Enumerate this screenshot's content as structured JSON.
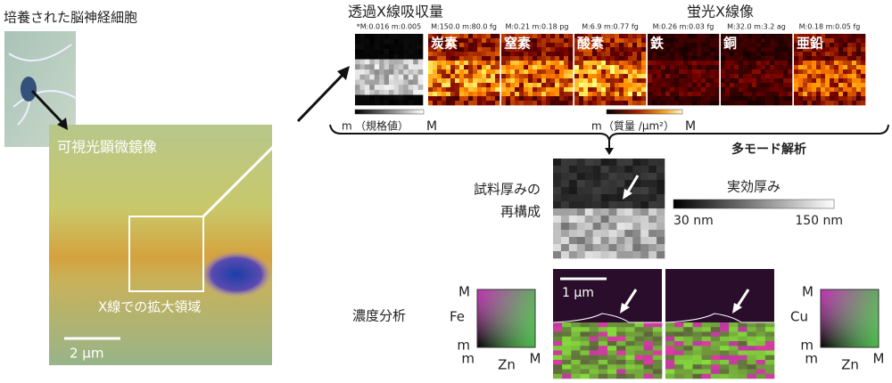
{
  "left": {
    "culture_label": "培養された脳神経細胞",
    "micro_label": "可視光顕微鏡像",
    "region_label": "X線での拡大領域",
    "scale_bar": "2 µm"
  },
  "transmission": {
    "title": "透過X線吸収量",
    "range": "*M:0.016 m:0.005",
    "legend_min": "m",
    "legend_label": "（規格値）",
    "legend_max": "M"
  },
  "fluorescence": {
    "title": "蛍光X線像",
    "panels": [
      {
        "element": "炭素",
        "range": "M:150.0 m:80.0 fg"
      },
      {
        "element": "窒素",
        "range": "M:0.21 m:0.18 pg"
      },
      {
        "element": "酸素",
        "range": "M:6.9 m:0.77 fg"
      },
      {
        "element": "鉄",
        "range": "M:0.26 m:0.03 fg"
      },
      {
        "element": "銅",
        "range": "M:32.0 m:3.2 ag"
      },
      {
        "element": "亜鉛",
        "range": "M:0.18 m:0.05 fg"
      }
    ],
    "legend_min": "m",
    "legend_label": "（質量 /µm²）",
    "legend_max": "M"
  },
  "analysis": "多モード解析",
  "thickness": {
    "label_lines": [
      "試料厚みの",
      "再構成"
    ],
    "legend_title": "実効厚み",
    "min": "30 nm",
    "max": "150 nm"
  },
  "concentration": {
    "label": "濃度分析",
    "scale_bar": "1 µm",
    "legends": [
      {
        "y_label": "Fe",
        "y_max": "M",
        "y_min": "m",
        "x_min": "m",
        "x_label": "Zn",
        "x_max": "M"
      },
      {
        "y_label": "Cu",
        "y_max": "M",
        "y_min": "m",
        "x_min": "m",
        "x_label": "Zn",
        "x_max": "M"
      }
    ]
  }
}
